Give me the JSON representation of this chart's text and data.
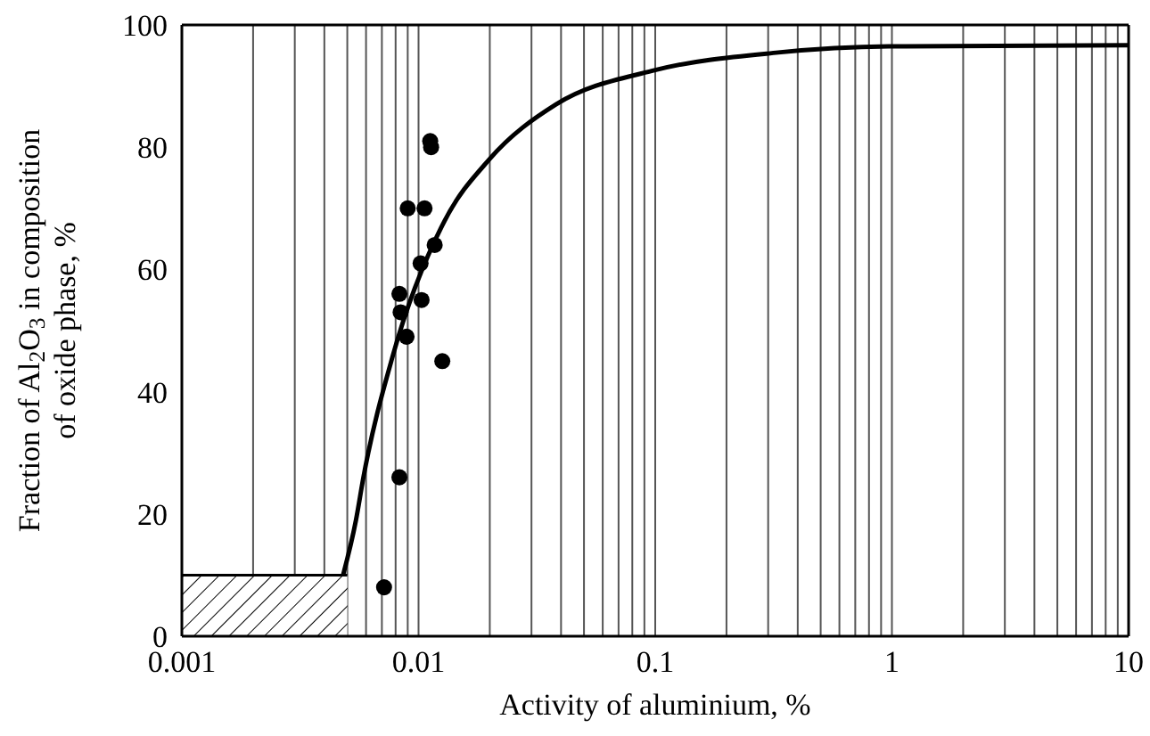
{
  "chart_data": {
    "type": "scatter",
    "xlabel": "Activity of aluminium, %",
    "ylabel": "Fraction of Al$_{2}$O$_{3}$ in composition of oxide phase, %",
    "log": "x",
    "grid": "x",
    "legend": false,
    "xlim": [
      0.001,
      10
    ],
    "ylim": [
      0,
      100
    ],
    "yticks": [
      0,
      20,
      40,
      60,
      80,
      100
    ],
    "xticks": [
      0.001,
      {
        "value": 0.002,
        "label": null
      },
      {
        "value": 0.003,
        "label": null
      },
      {
        "value": 0.004,
        "label": null
      },
      {
        "value": 0.005,
        "label": null
      },
      {
        "value": 0.006,
        "label": null
      },
      {
        "value": 0.007,
        "label": null
      },
      {
        "value": 0.008,
        "label": null
      },
      {
        "value": 0.009,
        "label": null
      },
      0.01,
      {
        "value": 0.02,
        "label": null
      },
      {
        "value": 0.03,
        "label": null
      },
      {
        "value": 0.04,
        "label": null
      },
      {
        "value": 0.05,
        "label": null
      },
      {
        "value": 0.06,
        "label": null
      },
      {
        "value": 0.07,
        "label": null
      },
      {
        "value": 0.08,
        "label": null
      },
      {
        "value": 0.09,
        "label": null
      },
      0.1,
      {
        "value": 0.2,
        "label": null
      },
      {
        "value": 0.3,
        "label": null
      },
      {
        "value": 0.4,
        "label": null
      },
      {
        "value": 0.5,
        "label": null
      },
      {
        "value": 0.6,
        "label": null
      },
      {
        "value": 0.7,
        "label": null
      },
      {
        "value": 0.8,
        "label": null
      },
      {
        "value": 0.9,
        "label": null
      },
      1,
      {
        "value": 2,
        "label": null
      },
      {
        "value": 3,
        "label": null
      },
      {
        "value": 4,
        "label": null
      },
      {
        "value": 5,
        "label": null
      },
      {
        "value": 6,
        "label": null
      },
      {
        "value": 7,
        "label": null
      },
      {
        "value": 8,
        "label": null
      },
      {
        "value": 9,
        "label": null
      },
      10
    ],
    "series": [
      {
        "type": "area",
        "color": "#000000",
        "x": [
          0.001,
          0.005
        ],
        "values": [
          10,
          10
        ]
      },
      {
        "type": "line",
        "color": "#000000",
        "line_style": "solid",
        "marker": "none",
        "x": [
          0.0048,
          0.00544,
          0.00585,
          0.0078,
          0.0129,
          0.0199,
          0.0381,
          0.0973,
          0.331,
          0.97,
          10
        ],
        "values": [
          10,
          19,
          26,
          46,
          68,
          78,
          87,
          92.5,
          95.5,
          96.5,
          96.7
        ]
      },
      {
        "color": "#000000",
        "marker": "circle",
        "x": [
          0.00715,
          0.0083,
          0.0083,
          0.0084,
          0.0089,
          0.009,
          0.0102,
          0.0103,
          0.0106,
          0.0112,
          0.0113,
          0.0117,
          0.0126
        ],
        "values": [
          8,
          26,
          56,
          53,
          49,
          70,
          61,
          55,
          70,
          81,
          80,
          64,
          45
        ]
      }
    ]
  }
}
